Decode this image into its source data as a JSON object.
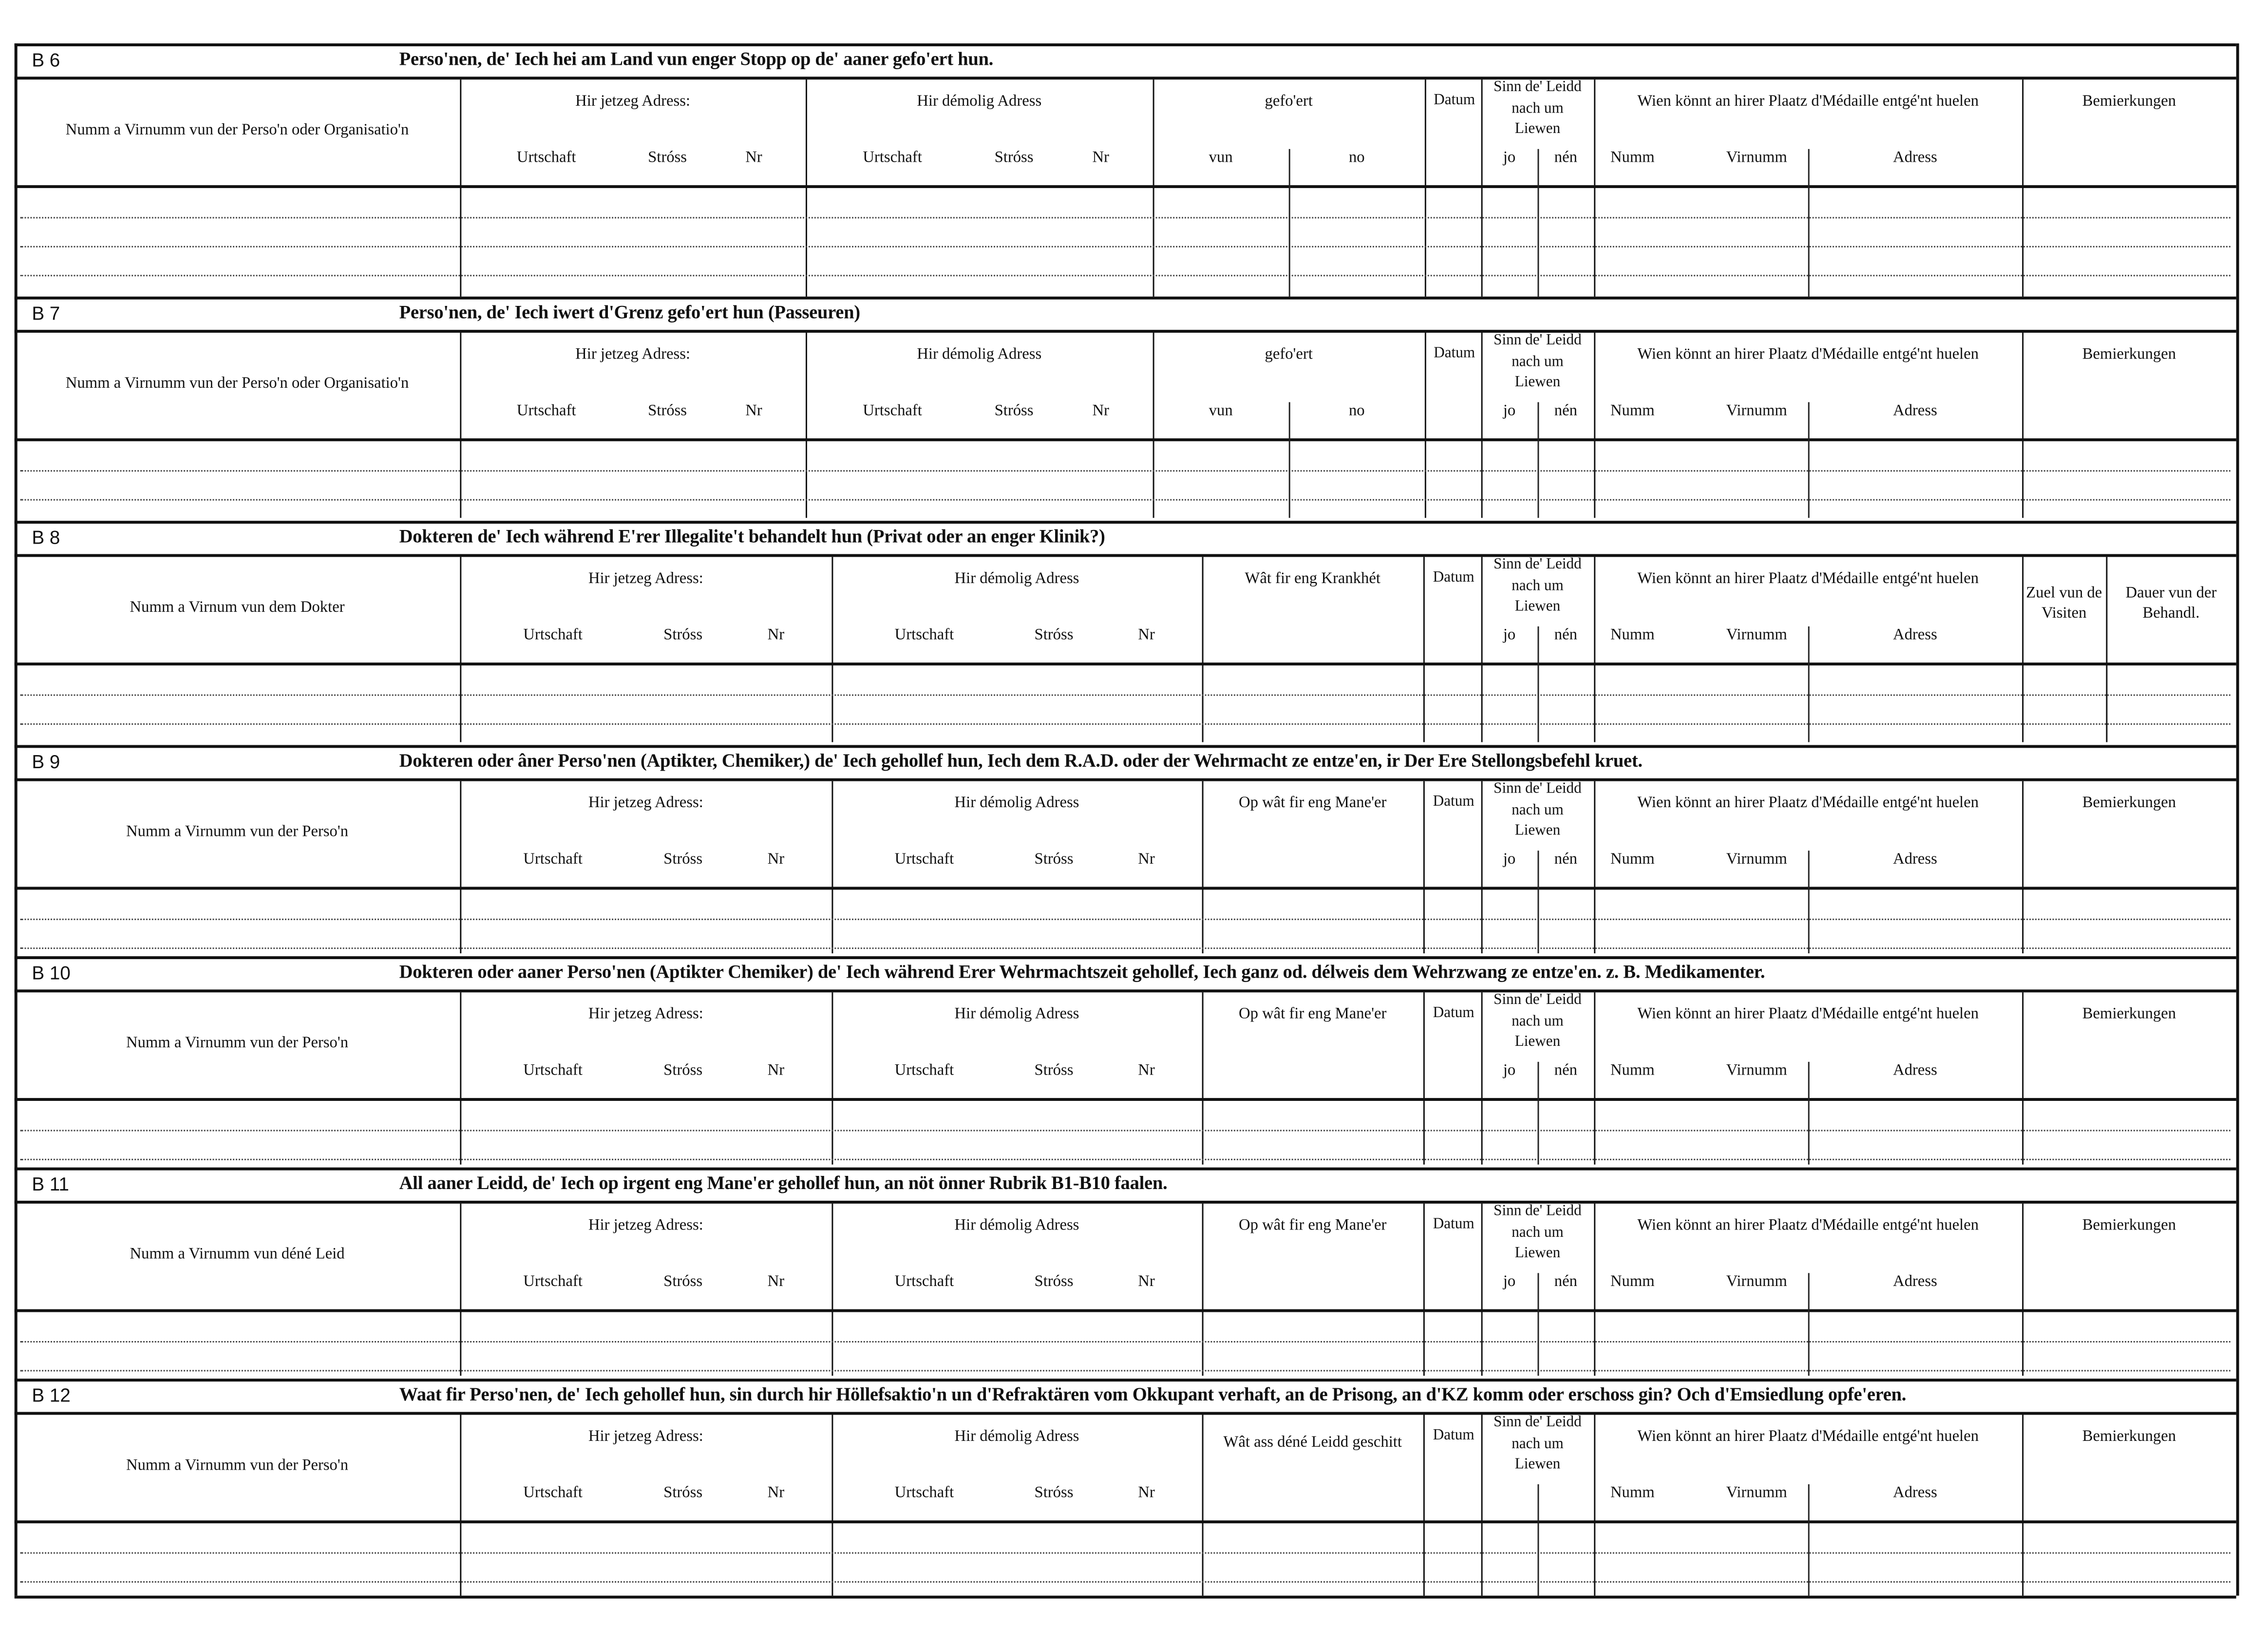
{
  "document": {
    "sections": [
      {
        "id": "B 6",
        "title": "Perso'nen, de' Iech hei am Land vun enger Stopp  op de' aaner gefo'ert hun.",
        "headers": [
          {
            "label": "Numm a Virnumm vun der Perso'n oder Organisatio'n",
            "sub": []
          },
          {
            "label": "Hir jetzeg Adress:",
            "sub": [
              "Urtschaft",
              "Stróss",
              "Nr"
            ]
          },
          {
            "label": "Hir démolig Adress",
            "sub": [
              "Urtschaft",
              "Stróss",
              "Nr"
            ]
          },
          {
            "label": "gefo'ert",
            "sub": [
              "vun",
              "no"
            ]
          },
          {
            "label": "Datum",
            "sub": []
          },
          {
            "label": "Sinn de' Leidd nach um Liewen",
            "sub": [
              "jo",
              "nén"
            ]
          },
          {
            "label": "Wien könnt an hirer Plaatz d'Médaille entgé'nt huelen",
            "sub": [
              "Numm",
              "Virnumm",
              "Adress"
            ]
          },
          {
            "label": "Bemierkungen",
            "sub": []
          }
        ]
      },
      {
        "id": "B 7",
        "title": "Perso'nen, de' Iech iwert d'Grenz gefo'ert hun (Passeuren)",
        "headers": [
          {
            "label": "Numm a Virnumm vun der Perso'n oder Organisatio'n",
            "sub": []
          },
          {
            "label": "Hir jetzeg Adress:",
            "sub": [
              "Urtschaft",
              "Stróss",
              "Nr"
            ]
          },
          {
            "label": "Hir démolig Adress",
            "sub": [
              "Urtschaft",
              "Stróss",
              "Nr"
            ]
          },
          {
            "label": "gefo'ert",
            "sub": [
              "vun",
              "no"
            ]
          },
          {
            "label": "Datum",
            "sub": []
          },
          {
            "label": "Sinn de' Leidd nach um Liewen",
            "sub": [
              "jo",
              "nén"
            ]
          },
          {
            "label": "Wien könnt an hirer Plaatz d'Médaille entgé'nt huelen",
            "sub": [
              "Numm",
              "Virnumm",
              "Adress"
            ]
          },
          {
            "label": "Bemierkungen",
            "sub": []
          }
        ]
      },
      {
        "id": "B 8",
        "title": "Dokteren de' Iech während E'rer Illegalite't behandelt hun (Privat oder an enger Klinik?)",
        "headers": [
          {
            "label": "Numm a Virnum vun dem Dokter",
            "sub": []
          },
          {
            "label": "Hir jetzeg Adress:",
            "sub": [
              "Urtschaft",
              "Stróss",
              "Nr"
            ]
          },
          {
            "label": "Hir démolig Adress",
            "sub": [
              "Urtschaft",
              "Stróss",
              "Nr"
            ]
          },
          {
            "label": "Wât fir eng Krankhét",
            "sub": []
          },
          {
            "label": "Datum",
            "sub": []
          },
          {
            "label": "Sinn de' Leidd nach um Liewen",
            "sub": [
              "jo",
              "nén"
            ]
          },
          {
            "label": "Wien könnt an hirer Plaatz d'Médaille entgé'nt huelen",
            "sub": [
              "Numm",
              "Virnumm",
              "Adress"
            ]
          },
          {
            "label": "Zuel vun de Visiten",
            "sub": []
          },
          {
            "label": "Dauer vun der Behandl.",
            "sub": []
          }
        ]
      },
      {
        "id": "B 9",
        "title": "Dokteren oder âner Perso'nen (Aptikter, Chemiker,) de' Iech gehollef hun, Iech dem R.A.D. oder der Wehrmacht ze entze'en, ir Der Ere Stellongsbefehl kruet.",
        "headers": [
          {
            "label": "Numm a Virnumm vun der Perso'n",
            "sub": []
          },
          {
            "label": "Hir jetzeg Adress:",
            "sub": [
              "Urtschaft",
              "Stróss",
              "Nr"
            ]
          },
          {
            "label": "Hir démolig Adress",
            "sub": [
              "Urtschaft",
              "Stróss",
              "Nr"
            ]
          },
          {
            "label": "Op wât fir eng Mane'er",
            "sub": []
          },
          {
            "label": "Datum",
            "sub": []
          },
          {
            "label": "Sinn de' Leidd nach um Liewen",
            "sub": [
              "jo",
              "nén"
            ]
          },
          {
            "label": "Wien könnt an hirer Plaatz d'Médaille entgé'nt huelen",
            "sub": [
              "Numm",
              "Virnumm",
              "Adress"
            ]
          },
          {
            "label": "Bemierkungen",
            "sub": []
          }
        ]
      },
      {
        "id": "B 10",
        "title": "Dokteren oder aaner Perso'nen (Aptikter Chemiker) de' Iech während Erer Wehrmachtszeit gehollef, Iech ganz od. délweis dem Wehrzwang ze entze'en. z. B. Medikamenter.",
        "headers": [
          {
            "label": "Numm a Virnumm vun der Perso'n",
            "sub": []
          },
          {
            "label": "Hir jetzeg Adress:",
            "sub": [
              "Urtschaft",
              "Stróss",
              "Nr"
            ]
          },
          {
            "label": "Hir démolig Adress",
            "sub": [
              "Urtschaft",
              "Stróss",
              "Nr"
            ]
          },
          {
            "label": "Op wât fir eng Mane'er",
            "sub": []
          },
          {
            "label": "Datum",
            "sub": []
          },
          {
            "label": "Sinn de' Leidd nach um Liewen",
            "sub": [
              "jo",
              "nén"
            ]
          },
          {
            "label": "Wien könnt an hirer Plaatz d'Médaille entgé'nt huelen",
            "sub": [
              "Numm",
              "Virnumm",
              "Adress"
            ]
          },
          {
            "label": "Bemierkungen",
            "sub": []
          }
        ]
      },
      {
        "id": "B 11",
        "title": "All aaner Leidd, de' Iech op irgent eng Mane'er gehollef hun, an nöt önner Rubrik B1-B10 faalen.",
        "headers": [
          {
            "label": "Numm a Virnumm vun déné Leid",
            "sub": []
          },
          {
            "label": "Hir jetzeg Adress:",
            "sub": [
              "Urtschaft",
              "Stróss",
              "Nr"
            ]
          },
          {
            "label": "Hir démolig Adress",
            "sub": [
              "Urtschaft",
              "Stróss",
              "Nr"
            ]
          },
          {
            "label": "Op wât fir eng Mane'er",
            "sub": []
          },
          {
            "label": "Datum",
            "sub": []
          },
          {
            "label": "Sinn de' Leidd nach um Liewen",
            "sub": [
              "jo",
              "nén"
            ]
          },
          {
            "label": "Wien könnt an hirer Plaatz d'Médaille entgé'nt huelen",
            "sub": [
              "Numm",
              "Virnumm",
              "Adress"
            ]
          },
          {
            "label": "Bemierkungen",
            "sub": []
          }
        ]
      },
      {
        "id": "B 12",
        "title": "Waat fir Perso'nen, de' Iech gehollef hun, sin durch hir Höllefsaktio'n un d'Refraktären vom Okkupant verhaft, an de Prisong, an d'KZ komm oder  erschoss gin? Och d'Emsiedlung opfe'eren.",
        "headers": [
          {
            "label": "Numm a Virnumm vun der Perso'n",
            "sub": []
          },
          {
            "label": "Hir jetzeg Adress:",
            "sub": [
              "Urtschaft",
              "Stróss",
              "Nr"
            ]
          },
          {
            "label": "Hir démolig Adress",
            "sub": [
              "Urtschaft",
              "Stróss",
              "Nr"
            ]
          },
          {
            "label": "Wât ass déné Leidd geschitt",
            "sub": []
          },
          {
            "label": "Datum",
            "sub": []
          },
          {
            "label": "Sinn de' Leidd nach um Liewen",
            "sub": []
          },
          {
            "label": "Wien könnt an hirer Plaatz d'Médaille entgé'nt huelen",
            "sub": [
              "Numm",
              "Virnumm",
              "Adress"
            ]
          },
          {
            "label": "Bemierkungen",
            "sub": []
          }
        ]
      }
    ]
  }
}
